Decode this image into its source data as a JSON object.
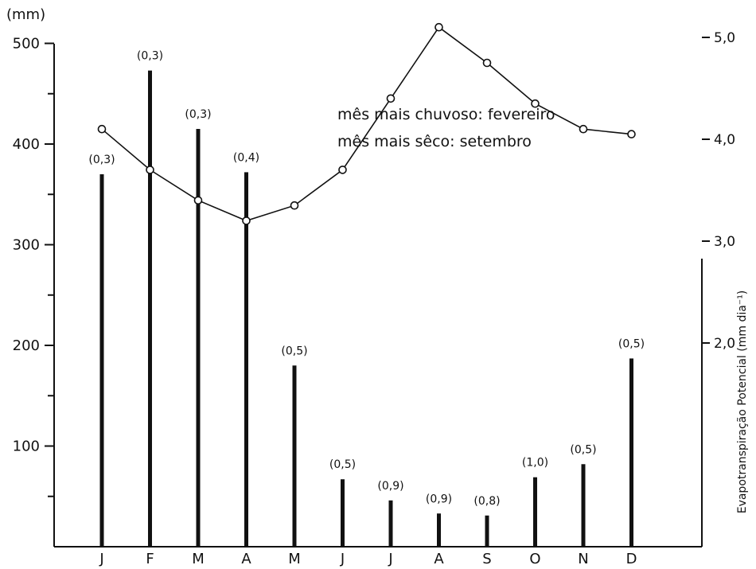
{
  "chart_data": {
    "type": "bar",
    "categories": [
      "J",
      "F",
      "M",
      "A",
      "M",
      "J",
      "J",
      "A",
      "S",
      "O",
      "N",
      "D"
    ],
    "series": [
      {
        "axis": "left",
        "mark": "bar",
        "values": [
          370,
          473,
          415,
          372,
          180,
          67,
          46,
          33,
          31,
          69,
          82,
          187
        ],
        "labels": [
          "(0,3)",
          "(0,3)",
          "(0,3)",
          "(0,4)",
          "(0,5)",
          "(0,5)",
          "(0,9)",
          "(0,9)",
          "(0,8)",
          "(1,0)",
          "(0,5)",
          "(0,5)"
        ]
      },
      {
        "axis": "right",
        "mark": "line",
        "values": [
          4.1,
          3.7,
          3.4,
          3.2,
          3.35,
          3.7,
          4.4,
          5.1,
          4.75,
          4.35,
          4.1,
          4.05
        ]
      }
    ],
    "y_left": {
      "label": "(mm)",
      "ticks": [
        100,
        200,
        300,
        400,
        500
      ],
      "tick_labels": [
        "100",
        "200",
        "300",
        "400",
        "500"
      ],
      "range": [
        0,
        500
      ]
    },
    "y_right": {
      "label": "Evapotranspiração Potencial (mm dia⁻¹)",
      "ticks": [
        2,
        3,
        4,
        5
      ],
      "tick_labels": [
        "2,0",
        "3,0",
        "4,0",
        "5,0"
      ],
      "range": [
        0,
        7
      ]
    },
    "annotations": [
      "mês mais chuvoso: fevereiro",
      "mês mais sêco: setembro"
    ],
    "grid": false,
    "colors": {
      "ink": "#111111",
      "paper": "#ffffff"
    }
  }
}
